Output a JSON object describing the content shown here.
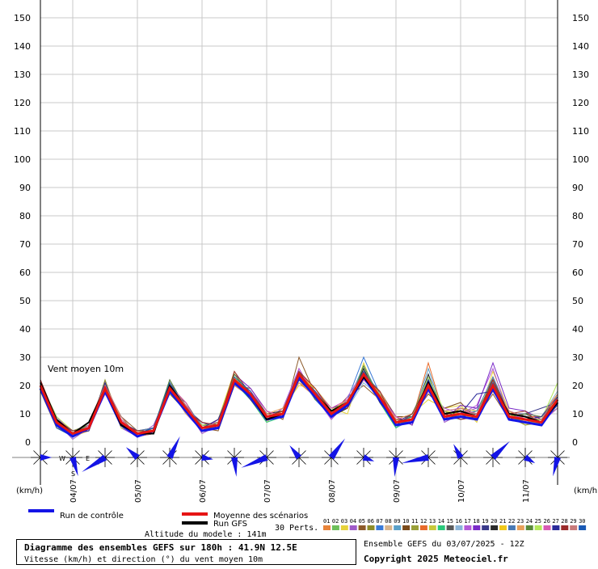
{
  "chart_data": {
    "type": "line",
    "annotation": "Vent moyen 10m",
    "y_unit": "(km/h)",
    "categories": [
      null,
      null,
      "04/07",
      null,
      null,
      null,
      "05/07",
      null,
      null,
      null,
      "06/07",
      null,
      null,
      null,
      "07/07",
      null,
      null,
      null,
      "08/07",
      null,
      null,
      null,
      "09/07",
      null,
      null,
      null,
      "10/07",
      null,
      null,
      null,
      "11/07",
      null,
      null
    ],
    "ylim": [
      0,
      150
    ],
    "yticks": [
      0,
      10,
      20,
      30,
      40,
      50,
      60,
      70,
      80,
      90,
      100,
      110,
      120,
      130,
      140,
      150
    ],
    "grid": true,
    "perts_label": "30 Perts.",
    "altitude": "Altitude du modele : 141m",
    "info_title": "Diagramme des ensembles GEFS sur 180h : 41.9N 12.5E",
    "info_subtitle": "Vitesse (km/h) et direction (°) du vent moyen 10m",
    "run_info": "Ensemble GEFS du 03/07/2025 - 12Z",
    "copyright": "Copyright 2025 Meteociel.fr",
    "compass": [
      "W",
      "E",
      "S"
    ],
    "series": [
      {
        "name": "01",
        "color": "#e8843a",
        "values": [
          21,
          8,
          2,
          6,
          20,
          6,
          2,
          5,
          20,
          11,
          4,
          7,
          23,
          16,
          8,
          11,
          25,
          18,
          9,
          13,
          26,
          15,
          6,
          9,
          22,
          8,
          11,
          10,
          18,
          10,
          9,
          6,
          14
        ]
      },
      {
        "name": "02",
        "color": "#6cbf5a",
        "values": [
          19,
          6,
          4,
          5,
          18,
          8,
          3,
          3,
          18,
          13,
          6,
          5,
          21,
          18,
          10,
          9,
          22,
          16,
          11,
          15,
          22,
          17,
          8,
          7,
          19,
          10,
          9,
          8,
          22,
          8,
          7,
          8,
          16
        ]
      },
      {
        "name": "03",
        "color": "#e6d23a",
        "values": [
          20,
          9,
          3,
          4,
          21,
          7,
          4,
          4,
          21,
          10,
          5,
          8,
          25,
          15,
          7,
          12,
          20,
          19,
          12,
          10,
          28,
          14,
          5,
          10,
          15,
          12,
          13,
          7,
          25,
          11,
          6,
          9,
          18
        ]
      },
      {
        "name": "04",
        "color": "#a05ac8",
        "values": [
          22,
          7,
          1,
          5,
          19,
          5,
          2,
          6,
          19,
          12,
          3,
          6,
          22,
          17,
          9,
          10,
          26,
          16,
          8,
          14,
          24,
          18,
          7,
          8,
          24,
          7,
          10,
          12,
          19,
          9,
          10,
          7,
          13
        ]
      },
      {
        "name": "05",
        "color": "#8c5a2a",
        "values": [
          18,
          5,
          3,
          7,
          17,
          9,
          4,
          3,
          20,
          14,
          5,
          4,
          20,
          19,
          11,
          8,
          30,
          17,
          10,
          16,
          20,
          15,
          9,
          6,
          21,
          11,
          8,
          9,
          17,
          8,
          8,
          6,
          17
        ]
      },
      {
        "name": "06",
        "color": "#8c8c2a",
        "values": [
          20,
          8,
          2,
          4,
          22,
          6,
          3,
          5,
          17,
          11,
          6,
          7,
          24,
          16,
          8,
          11,
          23,
          18,
          11,
          12,
          25,
          16,
          6,
          9,
          18,
          9,
          12,
          10,
          21,
          10,
          7,
          8,
          12
        ]
      },
      {
        "name": "07",
        "color": "#3a7ad8",
        "values": [
          21,
          6,
          4,
          6,
          19,
          8,
          2,
          4,
          20,
          13,
          4,
          6,
          21,
          18,
          9,
          9,
          24,
          15,
          9,
          15,
          30,
          17,
          8,
          7,
          23,
          10,
          9,
          8,
          20,
          9,
          9,
          7,
          15
        ]
      },
      {
        "name": "08",
        "color": "#d8b48c",
        "values": [
          19,
          7,
          3,
          5,
          20,
          7,
          3,
          4,
          22,
          12,
          7,
          5,
          23,
          17,
          10,
          10,
          22,
          19,
          12,
          13,
          23,
          14,
          7,
          10,
          20,
          8,
          11,
          9,
          22,
          11,
          8,
          9,
          16
        ]
      },
      {
        "name": "09",
        "color": "#5aa0c8",
        "values": [
          20,
          9,
          2,
          5,
          18,
          6,
          4,
          5,
          19,
          10,
          5,
          8,
          22,
          15,
          8,
          12,
          25,
          16,
          10,
          14,
          27,
          16,
          5,
          8,
          26,
          9,
          10,
          11,
          19,
          8,
          7,
          6,
          14
        ]
      },
      {
        "name": "10",
        "color": "#7a4a1a",
        "values": [
          21,
          6,
          3,
          4,
          21,
          7,
          2,
          3,
          18,
          11,
          5,
          6,
          20,
          16,
          9,
          10,
          23,
          17,
          11,
          13,
          22,
          18,
          9,
          9,
          17,
          12,
          14,
          8,
          23,
          10,
          9,
          8,
          15
        ]
      },
      {
        "name": "11",
        "color": "#9aa03a",
        "values": [
          22,
          8,
          4,
          6,
          19,
          8,
          3,
          4,
          20,
          12,
          4,
          7,
          22,
          18,
          10,
          9,
          24,
          18,
          9,
          14,
          24,
          15,
          6,
          7,
          21,
          10,
          9,
          10,
          20,
          9,
          6,
          7,
          13
        ]
      },
      {
        "name": "12",
        "color": "#e86a2a",
        "values": [
          20,
          7,
          2,
          5,
          20,
          5,
          4,
          5,
          21,
          13,
          6,
          5,
          23,
          17,
          8,
          11,
          21,
          16,
          10,
          12,
          25,
          17,
          8,
          8,
          28,
          9,
          10,
          9,
          18,
          11,
          9,
          9,
          17
        ]
      },
      {
        "name": "13",
        "color": "#c8c83a",
        "values": [
          19,
          5,
          3,
          7,
          18,
          7,
          3,
          3,
          19,
          11,
          5,
          8,
          24,
          16,
          9,
          10,
          25,
          19,
          11,
          15,
          23,
          16,
          7,
          9,
          19,
          8,
          12,
          11,
          21,
          10,
          8,
          6,
          14
        ]
      },
      {
        "name": "14",
        "color": "#2ac87a",
        "values": [
          21,
          8,
          4,
          4,
          19,
          9,
          2,
          4,
          20,
          12,
          4,
          6,
          21,
          15,
          7,
          9,
          22,
          17,
          9,
          13,
          26,
          14,
          5,
          10,
          22,
          11,
          9,
          8,
          19,
          9,
          7,
          8,
          16
        ]
      },
      {
        "name": "15",
        "color": "#5a5a5a",
        "values": [
          20,
          6,
          2,
          5,
          21,
          6,
          3,
          5,
          18,
          14,
          5,
          7,
          22,
          18,
          10,
          11,
          24,
          18,
          10,
          14,
          24,
          18,
          8,
          7,
          20,
          10,
          11,
          9,
          22,
          8,
          10,
          7,
          15
        ]
      },
      {
        "name": "16",
        "color": "#8ab4d8",
        "values": [
          18,
          7,
          3,
          6,
          20,
          7,
          4,
          4,
          21,
          11,
          6,
          5,
          23,
          16,
          9,
          10,
          23,
          15,
          11,
          12,
          21,
          16,
          7,
          8,
          23,
          9,
          8,
          10,
          20,
          11,
          8,
          9,
          18
        ]
      },
      {
        "name": "17",
        "color": "#b45ad8",
        "values": [
          21,
          9,
          3,
          5,
          17,
          8,
          2,
          3,
          19,
          10,
          4,
          8,
          20,
          17,
          8,
          12,
          26,
          16,
          8,
          16,
          25,
          15,
          6,
          9,
          18,
          12,
          10,
          13,
          26,
          9,
          9,
          7,
          12
        ]
      },
      {
        "name": "18",
        "color": "#7a2ac8",
        "values": [
          20,
          6,
          4,
          4,
          19,
          6,
          3,
          5,
          20,
          13,
          5,
          6,
          24,
          19,
          11,
          9,
          24,
          17,
          10,
          13,
          23,
          17,
          9,
          6,
          21,
          8,
          13,
          12,
          28,
          12,
          11,
          8,
          16
        ]
      },
      {
        "name": "19",
        "color": "#3a3a8a",
        "values": [
          22,
          7,
          2,
          6,
          21,
          7,
          4,
          4,
          22,
          12,
          7,
          5,
          22,
          16,
          9,
          10,
          22,
          18,
          12,
          14,
          24,
          16,
          7,
          10,
          20,
          10,
          9,
          10,
          20,
          10,
          10,
          12,
          14
        ]
      },
      {
        "name": "20",
        "color": "#2a2a2a",
        "values": [
          19,
          8,
          3,
          5,
          18,
          9,
          2,
          4,
          18,
          11,
          5,
          7,
          21,
          17,
          10,
          11,
          25,
          16,
          9,
          12,
          26,
          14,
          8,
          8,
          24,
          9,
          11,
          9,
          21,
          9,
          8,
          9,
          15
        ]
      },
      {
        "name": "21",
        "color": "#f0c81a",
        "values": [
          20,
          5,
          3,
          7,
          20,
          7,
          3,
          3,
          21,
          12,
          4,
          6,
          23,
          15,
          8,
          10,
          23,
          19,
          11,
          15,
          22,
          17,
          6,
          9,
          19,
          11,
          10,
          8,
          19,
          8,
          7,
          6,
          17
        ]
      },
      {
        "name": "22",
        "color": "#4a7ab4",
        "values": [
          21,
          7,
          4,
          5,
          19,
          6,
          4,
          5,
          19,
          13,
          6,
          5,
          22,
          18,
          9,
          9,
          24,
          17,
          10,
          14,
          25,
          16,
          7,
          7,
          22,
          10,
          9,
          11,
          23,
          10,
          9,
          8,
          13
        ]
      },
      {
        "name": "23",
        "color": "#e8a05a",
        "values": [
          20,
          8,
          2,
          4,
          21,
          8,
          2,
          4,
          20,
          10,
          5,
          8,
          20,
          16,
          10,
          12,
          21,
          18,
          10,
          13,
          23,
          18,
          8,
          10,
          20,
          9,
          12,
          9,
          20,
          11,
          8,
          7,
          16
        ]
      },
      {
        "name": "24",
        "color": "#5a8a3a",
        "values": [
          18,
          6,
          3,
          6,
          19,
          7,
          3,
          5,
          22,
          12,
          5,
          7,
          24,
          17,
          8,
          10,
          25,
          15,
          11,
          12,
          27,
          15,
          6,
          8,
          21,
          8,
          10,
          10,
          22,
          9,
          10,
          9,
          14
        ]
      },
      {
        "name": "25",
        "color": "#b4e85a",
        "values": [
          21,
          9,
          4,
          5,
          20,
          5,
          4,
          3,
          18,
          11,
          6,
          6,
          23,
          16,
          9,
          11,
          24,
          17,
          9,
          14,
          24,
          17,
          7,
          9,
          23,
          11,
          9,
          8,
          20,
          10,
          7,
          8,
          21
        ]
      },
      {
        "name": "26",
        "color": "#d85ab4",
        "values": [
          20,
          7,
          2,
          6,
          18,
          8,
          2,
          4,
          20,
          14,
          4,
          5,
          21,
          18,
          11,
          9,
          23,
          18,
          12,
          15,
          22,
          16,
          9,
          7,
          18,
          10,
          11,
          10,
          21,
          8,
          9,
          7,
          15
        ]
      },
      {
        "name": "27",
        "color": "#2a2a9a",
        "values": [
          19,
          6,
          3,
          4,
          21,
          7,
          3,
          5,
          21,
          12,
          5,
          8,
          22,
          15,
          8,
          10,
          22,
          16,
          10,
          13,
          25,
          14,
          7,
          8,
          22,
          9,
          10,
          17,
          18,
          9,
          8,
          9,
          16
        ]
      },
      {
        "name": "28",
        "color": "#9a2a2a",
        "values": [
          22,
          8,
          4,
          5,
          19,
          6,
          4,
          4,
          19,
          11,
          7,
          6,
          25,
          17,
          9,
          11,
          25,
          19,
          11,
          12,
          23,
          18,
          6,
          10,
          21,
          10,
          8,
          9,
          22,
          10,
          11,
          6,
          14
        ]
      },
      {
        "name": "29",
        "color": "#c87a7a",
        "values": [
          20,
          7,
          3,
          7,
          20,
          9,
          2,
          3,
          20,
          13,
          5,
          7,
          22,
          16,
          10,
          9,
          24,
          17,
          9,
          14,
          24,
          16,
          8,
          7,
          19,
          11,
          12,
          10,
          19,
          11,
          9,
          8,
          17
        ]
      },
      {
        "name": "30",
        "color": "#1a5ab4",
        "values": [
          21,
          5,
          2,
          5,
          18,
          7,
          3,
          5,
          21,
          12,
          4,
          6,
          23,
          18,
          9,
          10,
          23,
          18,
          10,
          13,
          25,
          15,
          7,
          9,
          20,
          9,
          10,
          9,
          21,
          9,
          8,
          7,
          15
        ]
      },
      {
        "name": "Run de contrôle",
        "color": "#1414e6",
        "width": 3,
        "values": [
          19,
          6,
          2,
          5,
          18,
          6,
          2,
          4,
          18,
          11,
          4,
          5,
          21,
          16,
          8,
          9,
          23,
          16,
          9,
          13,
          23,
          15,
          6,
          7,
          19,
          8,
          9,
          8,
          19,
          8,
          7,
          6,
          14
        ]
      },
      {
        "name": "Run GFS",
        "color": "#000000",
        "width": 2,
        "values": [
          21,
          8,
          3,
          7,
          19,
          6,
          3,
          3,
          20,
          12,
          5,
          6,
          22,
          17,
          8,
          10,
          24,
          17,
          11,
          14,
          23,
          16,
          7,
          8,
          21,
          10,
          11,
          9,
          20,
          10,
          9,
          7,
          14
        ]
      },
      {
        "name": "Moyenne des scénarios",
        "color": "#e61414",
        "width": 3,
        "values": [
          20,
          7,
          3,
          5,
          19,
          7,
          3,
          4,
          19,
          12,
          5,
          6,
          22,
          17,
          9,
          10,
          24,
          17,
          10,
          14,
          24,
          16,
          7,
          8,
          20,
          9,
          10,
          9,
          20,
          9,
          8,
          7,
          15
        ]
      }
    ]
  }
}
